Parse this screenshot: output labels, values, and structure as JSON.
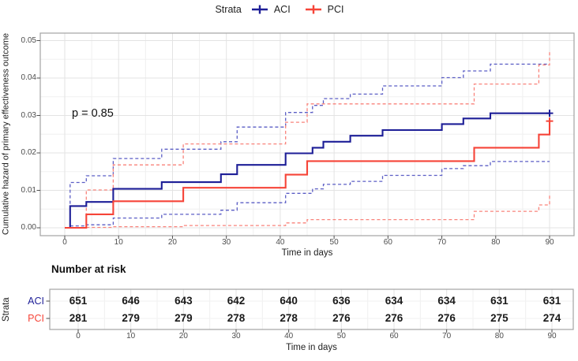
{
  "legend": {
    "title": "Strata",
    "items": [
      {
        "label": "ACI",
        "color": "#1d1e97"
      },
      {
        "label": "PCI",
        "color": "#f64438"
      }
    ]
  },
  "annotation": {
    "p_value": "p = 0.85"
  },
  "axes": {
    "y_title": "Cumulative hazard of primary effectiveness outcome",
    "x_title": "Time in days",
    "y_ticks": [
      "0.00",
      "0.01",
      "0.02",
      "0.03",
      "0.04",
      "0.05"
    ],
    "x_ticks": [
      0,
      10,
      20,
      30,
      40,
      50,
      60,
      70,
      80,
      90
    ]
  },
  "chart_data": {
    "type": "line",
    "subtype": "step-function-cumulative-hazard",
    "title": "",
    "xlabel": "Time in days",
    "ylabel": "Cumulative hazard of primary effectiveness outcome",
    "xlim": [
      0,
      90
    ],
    "ylim": [
      0,
      0.05
    ],
    "grid": "on",
    "legend_position": "top",
    "p_value_label": "p = 0.85",
    "series": [
      {
        "name": "ACI",
        "style": "solid",
        "color": "#1d1e97",
        "end": 90,
        "steps": [
          [
            0,
            0
          ],
          [
            1,
            0.0058
          ],
          [
            4,
            0.0069
          ],
          [
            9,
            0.0104
          ],
          [
            18,
            0.0122
          ],
          [
            29,
            0.0143
          ],
          [
            32,
            0.0168
          ],
          [
            41,
            0.0199
          ],
          [
            46,
            0.0214
          ],
          [
            48,
            0.023
          ],
          [
            53,
            0.0246
          ],
          [
            59,
            0.0261
          ],
          [
            70,
            0.0277
          ],
          [
            74,
            0.0292
          ],
          [
            79,
            0.0306
          ]
        ],
        "censor_marks": [
          [
            90,
            0.0306
          ]
        ]
      },
      {
        "name": "PCI",
        "style": "solid",
        "color": "#f64438",
        "end": 90,
        "steps": [
          [
            0,
            0
          ],
          [
            4,
            0.0036
          ],
          [
            9,
            0.0071
          ],
          [
            22,
            0.0107
          ],
          [
            41,
            0.0142
          ],
          [
            45,
            0.0178
          ],
          [
            76,
            0.0214
          ],
          [
            88,
            0.0249
          ],
          [
            90,
            0.0285
          ]
        ],
        "censor_marks": [
          [
            90,
            0.0285
          ]
        ]
      },
      {
        "name": "ACI upper 95% CI",
        "style": "dashed",
        "color": "#5b5ec5",
        "end": 90,
        "steps": [
          [
            1,
            0.0005
          ],
          [
            1,
            0.0121
          ],
          [
            4,
            0.0139
          ],
          [
            9,
            0.0185
          ],
          [
            18,
            0.021
          ],
          [
            29,
            0.023
          ],
          [
            32,
            0.0269
          ],
          [
            41,
            0.0308
          ],
          [
            46,
            0.0327
          ],
          [
            48,
            0.0345
          ],
          [
            53,
            0.0357
          ],
          [
            59,
            0.0379
          ],
          [
            70,
            0.0401
          ],
          [
            74,
            0.0419
          ],
          [
            79,
            0.0437
          ]
        ],
        "censor_marks": []
      },
      {
        "name": "ACI lower 95% CI",
        "style": "dashed",
        "color": "#5b5ec5",
        "end": 90,
        "steps": [
          [
            1,
            0.0005
          ],
          [
            4,
            0.0008
          ],
          [
            9,
            0.0026
          ],
          [
            18,
            0.0036
          ],
          [
            29,
            0.0047
          ],
          [
            32,
            0.0067
          ],
          [
            41,
            0.0092
          ],
          [
            46,
            0.0104
          ],
          [
            48,
            0.0116
          ],
          [
            53,
            0.0124
          ],
          [
            59,
            0.014
          ],
          [
            70,
            0.0158
          ],
          [
            74,
            0.0166
          ],
          [
            79,
            0.0177
          ]
        ],
        "censor_marks": []
      },
      {
        "name": "PCI upper 95% CI",
        "style": "dashed",
        "color": "#f9837b",
        "end": 90,
        "steps": [
          [
            4,
            0.0001
          ],
          [
            4,
            0.0101
          ],
          [
            9,
            0.0168
          ],
          [
            22,
            0.0224
          ],
          [
            41,
            0.0282
          ],
          [
            45,
            0.0331
          ],
          [
            76,
            0.0384
          ],
          [
            88,
            0.0435
          ],
          [
            90,
            0.0475
          ]
        ],
        "censor_marks": []
      },
      {
        "name": "PCI lower 95% CI",
        "style": "dashed",
        "color": "#f9837b",
        "end": 90,
        "steps": [
          [
            4,
            0.0001
          ],
          [
            9,
            0.0003
          ],
          [
            22,
            0.0006
          ],
          [
            41,
            0.0013
          ],
          [
            45,
            0.0022
          ],
          [
            76,
            0.0044
          ],
          [
            88,
            0.0061
          ],
          [
            90,
            0.0086
          ]
        ],
        "censor_marks": []
      }
    ]
  },
  "risk_table": {
    "title": "Number at risk",
    "y_axis_label": "Strata",
    "x_title": "Time in days",
    "times": [
      0,
      10,
      20,
      30,
      40,
      50,
      60,
      70,
      80,
      90
    ],
    "rows": [
      {
        "label": "ACI",
        "color": "#1d1e97",
        "values": [
          651,
          646,
          643,
          642,
          640,
          636,
          634,
          634,
          631,
          631
        ]
      },
      {
        "label": "PCI",
        "color": "#f64438",
        "values": [
          281,
          279,
          279,
          278,
          278,
          276,
          276,
          276,
          275,
          274
        ]
      }
    ]
  }
}
